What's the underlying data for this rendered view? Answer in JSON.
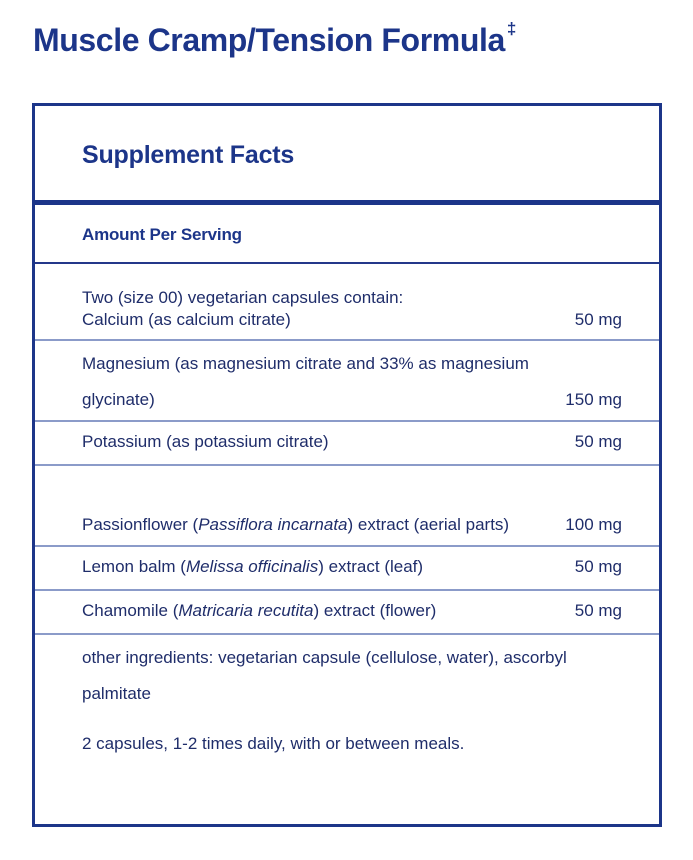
{
  "product": {
    "title": "Muscle Cramp/Tension Formula",
    "title_mark": "‡"
  },
  "facts": {
    "heading": "Supplement Facts",
    "amount_per_serving_label": "Amount Per Serving",
    "serving_size": "Two (size 00) vegetarian capsules contain:",
    "ingredients": [
      {
        "name_prefix": "Calcium (as calcium citrate)",
        "name_italic": "",
        "name_suffix": "",
        "amount": "50 mg"
      },
      {
        "name_prefix": "Magnesium (as magnesium citrate and 33% as magnesium glycinate)",
        "name_italic": "",
        "name_suffix": "",
        "amount": "150 mg"
      },
      {
        "name_prefix": "Potassium (as potassium citrate)",
        "name_italic": "",
        "name_suffix": "",
        "amount": "50 mg"
      },
      {
        "name_prefix": "Passionflower (",
        "name_italic": "Passiflora incarnata",
        "name_suffix": ") extract (aerial parts)",
        "amount": "100 mg"
      },
      {
        "name_prefix": "Lemon balm (",
        "name_italic": "Melissa officinalis",
        "name_suffix": ") extract (leaf)",
        "amount": "50 mg"
      },
      {
        "name_prefix": "Chamomile (",
        "name_italic": "Matricaria recutita",
        "name_suffix": ") extract (flower)",
        "amount": "50 mg"
      }
    ],
    "other_ingredients": "other ingredients: vegetarian capsule (cellulose, water), ascorbyl palmitate",
    "directions": "2 capsules, 1-2 times daily, with or between meals."
  },
  "colors": {
    "brand_navy": "#1c3589",
    "text_navy": "#1f2d6a",
    "divider_light": "#8b9bc9"
  }
}
